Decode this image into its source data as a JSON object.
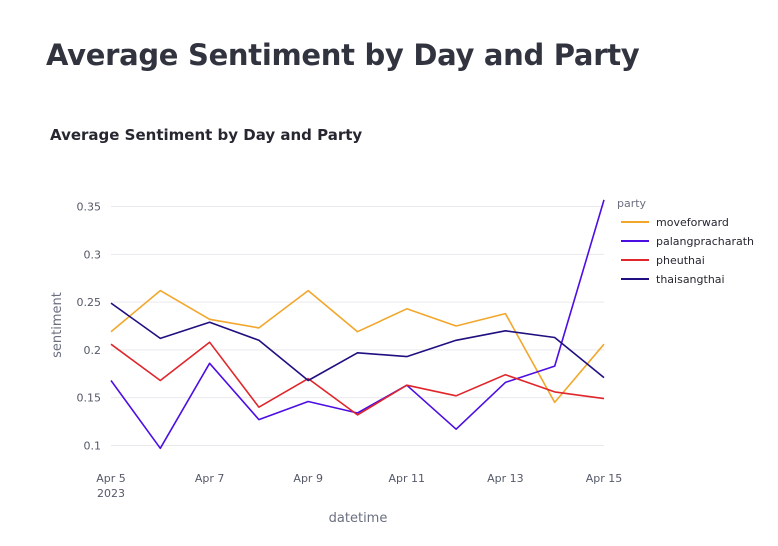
{
  "page": {
    "heading": "Average Sentiment by Day and Party"
  },
  "chart_data": {
    "type": "line",
    "title": "Average Sentiment by Day and Party",
    "xlabel": "datetime",
    "ylabel": "sentiment",
    "x": [
      "2023-04-05",
      "2023-04-06",
      "2023-04-07",
      "2023-04-08",
      "2023-04-09",
      "2023-04-10",
      "2023-04-11",
      "2023-04-12",
      "2023-04-13",
      "2023-04-14",
      "2023-04-15"
    ],
    "x_ticks": [
      {
        "date": "2023-04-05",
        "label": "Apr 5",
        "sublabel": "2023"
      },
      {
        "date": "2023-04-07",
        "label": "Apr 7"
      },
      {
        "date": "2023-04-09",
        "label": "Apr 9"
      },
      {
        "date": "2023-04-11",
        "label": "Apr 11"
      },
      {
        "date": "2023-04-13",
        "label": "Apr 13"
      },
      {
        "date": "2023-04-15",
        "label": "Apr 15"
      }
    ],
    "ylim": [
      0.09,
      0.36
    ],
    "y_ticks": [
      0.1,
      0.15,
      0.2,
      0.25,
      0.3,
      0.35
    ],
    "y_tick_labels": [
      "0.1",
      "0.15",
      "0.2",
      "0.25",
      "0.3",
      "0.35"
    ],
    "grid": true,
    "legend": {
      "title": "party",
      "position": "right"
    },
    "series": [
      {
        "name": "moveforward",
        "color": "#f2a72b",
        "values": [
          0.219,
          0.262,
          0.232,
          0.223,
          0.262,
          0.219,
          0.243,
          0.225,
          0.238,
          0.145,
          0.206
        ]
      },
      {
        "name": "palangpracharath",
        "color": "#4c0ee3",
        "values": [
          0.168,
          0.097,
          0.186,
          0.127,
          0.146,
          0.134,
          0.163,
          0.117,
          0.166,
          0.183,
          0.357
        ]
      },
      {
        "name": "pheuthai",
        "color": "#e0262b",
        "values": [
          0.206,
          0.168,
          0.208,
          0.14,
          0.17,
          0.132,
          0.163,
          0.152,
          0.174,
          0.156,
          0.149
        ]
      },
      {
        "name": "thaisangthai",
        "color": "#1f0f80",
        "values": [
          0.249,
          0.212,
          0.229,
          0.21,
          0.168,
          0.197,
          0.193,
          0.21,
          0.22,
          0.213,
          0.171
        ]
      }
    ]
  }
}
